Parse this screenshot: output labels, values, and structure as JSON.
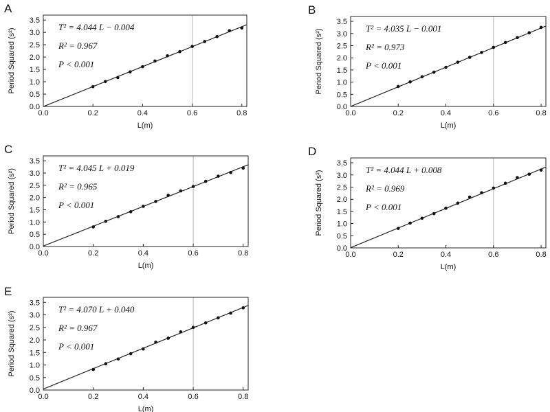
{
  "chart_data": [
    {
      "type": "scatter",
      "panel": "A",
      "xlabel": "L(m)",
      "ylabel": "Period Squared (s²)",
      "xlim": [
        0,
        0.82
      ],
      "ylim": [
        0,
        3.7
      ],
      "x_ticks": [
        "0.0",
        "0.2",
        "0.4",
        "0.6",
        "0.8"
      ],
      "y_ticks": [
        "0.0",
        "0.5",
        "1.0",
        "1.5",
        "2.0",
        "2.5",
        "3.0",
        "3.5"
      ],
      "grid": "vertical at 0.6",
      "annotations": [
        "T² = 4.044 L − 0.004",
        "R² = 0.967",
        "P < 0.001"
      ],
      "fit": {
        "slope": 4.044,
        "intercept": -0.004
      },
      "points": [
        {
          "x": 0.2,
          "y": 0.8
        },
        {
          "x": 0.25,
          "y": 1.01
        },
        {
          "x": 0.3,
          "y": 1.17
        },
        {
          "x": 0.35,
          "y": 1.4
        },
        {
          "x": 0.4,
          "y": 1.61
        },
        {
          "x": 0.45,
          "y": 1.84
        },
        {
          "x": 0.5,
          "y": 2.05
        },
        {
          "x": 0.55,
          "y": 2.22
        },
        {
          "x": 0.6,
          "y": 2.43
        },
        {
          "x": 0.65,
          "y": 2.63
        },
        {
          "x": 0.7,
          "y": 2.83
        },
        {
          "x": 0.75,
          "y": 3.07
        },
        {
          "x": 0.8,
          "y": 3.18
        }
      ]
    },
    {
      "type": "scatter",
      "panel": "B",
      "xlabel": "L(m)",
      "ylabel": "Period Squared (s²)",
      "xlim": [
        0,
        0.82
      ],
      "ylim": [
        0,
        3.7
      ],
      "x_ticks": [
        "0.0",
        "0.2",
        "0.4",
        "0.6",
        "0.8"
      ],
      "y_ticks": [
        "0.0",
        "0.5",
        "1.0",
        "1.5",
        "2.0",
        "2.5",
        "3.0",
        "3.5"
      ],
      "grid": "vertical at 0.6",
      "annotations": [
        "T² = 4.035 L − 0.001",
        "R² = 0.973",
        "P < 0.001"
      ],
      "fit": {
        "slope": 4.035,
        "intercept": -0.001
      },
      "points": [
        {
          "x": 0.2,
          "y": 0.82
        },
        {
          "x": 0.25,
          "y": 1.01
        },
        {
          "x": 0.3,
          "y": 1.22
        },
        {
          "x": 0.35,
          "y": 1.41
        },
        {
          "x": 0.4,
          "y": 1.61
        },
        {
          "x": 0.45,
          "y": 1.82
        },
        {
          "x": 0.5,
          "y": 2.02
        },
        {
          "x": 0.55,
          "y": 2.22
        },
        {
          "x": 0.6,
          "y": 2.43
        },
        {
          "x": 0.65,
          "y": 2.63
        },
        {
          "x": 0.7,
          "y": 2.83
        },
        {
          "x": 0.75,
          "y": 3.03
        },
        {
          "x": 0.8,
          "y": 3.25
        }
      ]
    },
    {
      "type": "scatter",
      "panel": "C",
      "xlabel": "L(m)",
      "ylabel": "Period Squared (s²)",
      "xlim": [
        0,
        0.82
      ],
      "ylim": [
        0,
        3.7
      ],
      "x_ticks": [
        "0.0",
        "0.2",
        "0.4",
        "0.6",
        "0.8"
      ],
      "y_ticks": [
        "0.0",
        "0.5",
        "1.0",
        "1.5",
        "2.0",
        "2.5",
        "3.0",
        "3.5"
      ],
      "grid": "vertical at 0.6",
      "annotations": [
        "T² = 4.045 L + 0.019",
        "R² = 0.965",
        "P < 0.001"
      ],
      "fit": {
        "slope": 4.045,
        "intercept": 0.019
      },
      "points": [
        {
          "x": 0.2,
          "y": 0.8
        },
        {
          "x": 0.25,
          "y": 1.03
        },
        {
          "x": 0.3,
          "y": 1.22
        },
        {
          "x": 0.35,
          "y": 1.42
        },
        {
          "x": 0.4,
          "y": 1.64
        },
        {
          "x": 0.45,
          "y": 1.84
        },
        {
          "x": 0.5,
          "y": 2.09
        },
        {
          "x": 0.55,
          "y": 2.27
        },
        {
          "x": 0.6,
          "y": 2.45
        },
        {
          "x": 0.65,
          "y": 2.66
        },
        {
          "x": 0.7,
          "y": 2.87
        },
        {
          "x": 0.75,
          "y": 3.02
        },
        {
          "x": 0.8,
          "y": 3.2
        }
      ]
    },
    {
      "type": "scatter",
      "panel": "D",
      "xlabel": "L(m)",
      "ylabel": "Period Squared (s²)",
      "xlim": [
        0,
        0.82
      ],
      "ylim": [
        0,
        3.7
      ],
      "x_ticks": [
        "0.0",
        "0.2",
        "0.4",
        "0.6",
        "0.8"
      ],
      "y_ticks": [
        "0.0",
        "0.5",
        "1.0",
        "1.5",
        "2.0",
        "2.5",
        "3.0",
        "3.5"
      ],
      "grid": "vertical at 0.6",
      "annotations": [
        "T² = 4.044 L + 0.008",
        "R² = 0.969",
        "P < 0.001"
      ],
      "fit": {
        "slope": 4.044,
        "intercept": 0.008
      },
      "points": [
        {
          "x": 0.2,
          "y": 0.8
        },
        {
          "x": 0.25,
          "y": 1.02
        },
        {
          "x": 0.3,
          "y": 1.22
        },
        {
          "x": 0.35,
          "y": 1.41
        },
        {
          "x": 0.4,
          "y": 1.63
        },
        {
          "x": 0.45,
          "y": 1.84
        },
        {
          "x": 0.5,
          "y": 2.09
        },
        {
          "x": 0.55,
          "y": 2.27
        },
        {
          "x": 0.6,
          "y": 2.46
        },
        {
          "x": 0.65,
          "y": 2.66
        },
        {
          "x": 0.7,
          "y": 2.89
        },
        {
          "x": 0.75,
          "y": 3.03
        },
        {
          "x": 0.8,
          "y": 3.2
        }
      ]
    },
    {
      "type": "scatter",
      "panel": "E",
      "xlabel": "L(m)",
      "ylabel": "Period Squared (s²)",
      "xlim": [
        0,
        0.82
      ],
      "ylim": [
        0,
        3.7
      ],
      "x_ticks": [
        "0.0",
        "0.2",
        "0.4",
        "0.6",
        "0.8"
      ],
      "y_ticks": [
        "0.0",
        "0.5",
        "1.0",
        "1.5",
        "2.0",
        "2.5",
        "3.0",
        "3.5"
      ],
      "grid": "vertical at 0.6",
      "annotations": [
        "T² = 4.070 L + 0.040",
        "R² = 0.967",
        "P < 0.001"
      ],
      "fit": {
        "slope": 4.07,
        "intercept": 0.04
      },
      "points": [
        {
          "x": 0.2,
          "y": 0.82
        },
        {
          "x": 0.25,
          "y": 1.05
        },
        {
          "x": 0.3,
          "y": 1.24
        },
        {
          "x": 0.35,
          "y": 1.45
        },
        {
          "x": 0.4,
          "y": 1.64
        },
        {
          "x": 0.45,
          "y": 1.91
        },
        {
          "x": 0.5,
          "y": 2.07
        },
        {
          "x": 0.55,
          "y": 2.32
        },
        {
          "x": 0.6,
          "y": 2.5
        },
        {
          "x": 0.65,
          "y": 2.68
        },
        {
          "x": 0.7,
          "y": 2.88
        },
        {
          "x": 0.75,
          "y": 3.07
        },
        {
          "x": 0.8,
          "y": 3.28
        }
      ]
    }
  ]
}
